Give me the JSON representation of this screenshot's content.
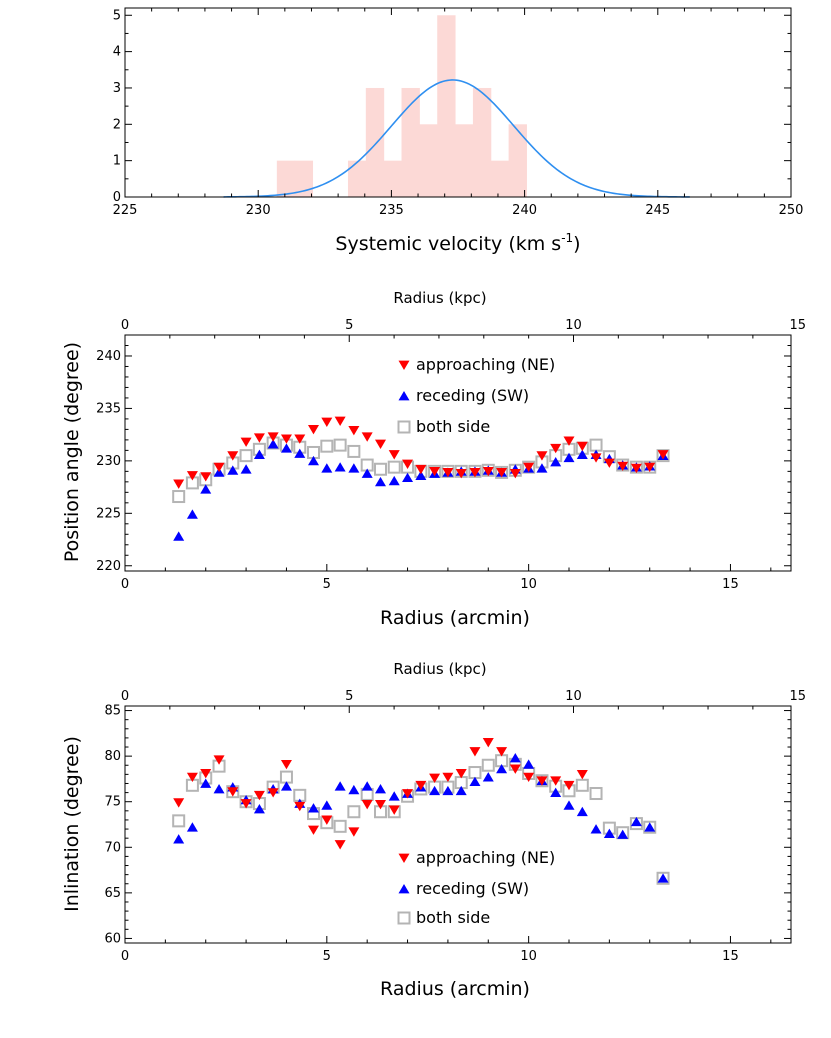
{
  "colors": {
    "approaching": "#ff0000",
    "receding": "#0000ff",
    "both": "#b4b4b4",
    "histogram": "#fcd9d6",
    "gaussian": "#2f8ff0"
  },
  "chart_data": [
    {
      "type": "histogram",
      "id": "panel1",
      "xlabel": "Systemic velocity (km s",
      "xlabel_sup": "-1",
      "xlabel_end": ")",
      "xlim": [
        225,
        250
      ],
      "ylim": [
        0,
        5.2
      ],
      "xticks": [
        225,
        230,
        235,
        240,
        245,
        250
      ],
      "yticks": [
        0,
        1,
        2,
        3,
        4,
        5
      ],
      "bin_width": 0.67,
      "bins": [
        {
          "start": 230.7,
          "count": 1
        },
        {
          "start": 231.37,
          "count": 1
        },
        {
          "start": 233.37,
          "count": 1
        },
        {
          "start": 234.04,
          "count": 3
        },
        {
          "start": 234.71,
          "count": 1
        },
        {
          "start": 235.38,
          "count": 3
        },
        {
          "start": 236.05,
          "count": 2
        },
        {
          "start": 236.72,
          "count": 5
        },
        {
          "start": 237.39,
          "count": 2
        },
        {
          "start": 238.06,
          "count": 3
        },
        {
          "start": 238.73,
          "count": 1
        },
        {
          "start": 239.4,
          "count": 2
        }
      ],
      "gaussian": {
        "amplitude": 3.22,
        "mean": 237.3,
        "sigma": 2.3,
        "x_range": [
          228.7,
          246.2
        ]
      }
    },
    {
      "type": "scatter",
      "id": "panel2",
      "xlabel": "Radius (arcmin)",
      "ylabel": "Position angle (degree)",
      "top_xlabel": "Radius (kpc)",
      "xlim": [
        0,
        16.5
      ],
      "ylim": [
        219.5,
        242
      ],
      "xticks": [
        0,
        5,
        10,
        15
      ],
      "yticks": [
        220,
        225,
        230,
        235,
        240
      ],
      "top_xticks": [
        0,
        5,
        10,
        15
      ],
      "kpc_per_arcmin": 0.9,
      "legend_position": "upper-center",
      "series": [
        {
          "name": "approaching (NE)",
          "marker": "triangle-down",
          "x": [
            1.33,
            1.67,
            2.0,
            2.33,
            2.67,
            3.0,
            3.33,
            3.67,
            4.0,
            4.33,
            4.67,
            5.0,
            5.33,
            5.67,
            6.0,
            6.33,
            6.67,
            7.0,
            7.33,
            7.67,
            8.0,
            8.33,
            8.67,
            9.0,
            9.33,
            9.67,
            10.0,
            10.33,
            10.67,
            11.0,
            11.33,
            11.67,
            12.0,
            12.33,
            12.67,
            13.0,
            13.33
          ],
          "y": [
            227.8,
            228.6,
            228.5,
            229.4,
            230.5,
            231.8,
            232.2,
            232.3,
            232.1,
            232.1,
            233.0,
            233.7,
            233.8,
            232.9,
            232.3,
            231.6,
            230.6,
            229.7,
            229.2,
            229.0,
            228.9,
            228.8,
            228.9,
            229.0,
            228.9,
            228.8,
            229.4,
            230.5,
            231.2,
            231.9,
            231.4,
            230.3,
            229.8,
            229.5,
            229.3,
            229.4,
            230.6
          ]
        },
        {
          "name": "receding (SW)",
          "marker": "triangle-up",
          "x": [
            1.33,
            1.67,
            2.0,
            2.33,
            2.67,
            3.0,
            3.33,
            3.67,
            4.0,
            4.33,
            4.67,
            5.0,
            5.33,
            5.67,
            6.0,
            6.33,
            6.67,
            7.0,
            7.33,
            7.67,
            8.0,
            8.33,
            8.67,
            9.0,
            9.33,
            9.67,
            10.0,
            10.33,
            10.67,
            11.0,
            11.33,
            11.67,
            12.0,
            12.33,
            12.67,
            13.0,
            13.33
          ],
          "y": [
            222.8,
            224.9,
            227.3,
            228.9,
            229.1,
            229.2,
            230.6,
            231.6,
            231.2,
            230.7,
            230.0,
            229.3,
            229.4,
            229.3,
            228.8,
            228.0,
            228.1,
            228.4,
            228.6,
            228.8,
            228.9,
            229.0,
            229.0,
            229.1,
            228.9,
            229.2,
            229.3,
            229.3,
            229.9,
            230.3,
            230.6,
            230.6,
            230.2,
            229.6,
            229.4,
            229.5,
            230.5
          ]
        },
        {
          "name": "both side",
          "marker": "square-open",
          "x": [
            1.33,
            1.67,
            2.0,
            2.33,
            2.67,
            3.0,
            3.33,
            3.67,
            4.0,
            4.33,
            4.67,
            5.0,
            5.33,
            5.67,
            6.0,
            6.33,
            6.67,
            7.0,
            7.33,
            7.67,
            8.0,
            8.33,
            8.67,
            9.0,
            9.33,
            9.67,
            10.0,
            10.33,
            10.67,
            11.0,
            11.33,
            11.67,
            12.0,
            12.33,
            12.67,
            13.0,
            13.33
          ],
          "y": [
            226.6,
            227.9,
            228.2,
            229.2,
            229.8,
            230.5,
            231.1,
            231.7,
            231.5,
            231.3,
            230.8,
            231.4,
            231.5,
            230.9,
            229.6,
            229.2,
            229.4,
            229.4,
            229.0,
            229.0,
            229.0,
            229.0,
            229.0,
            229.1,
            228.9,
            229.1,
            229.4,
            229.9,
            230.5,
            231.1,
            231.2,
            231.5,
            230.4,
            229.6,
            229.4,
            229.4,
            230.5
          ]
        }
      ]
    },
    {
      "type": "scatter",
      "id": "panel3",
      "xlabel": "Radius (arcmin)",
      "ylabel": "Inlination (degree)",
      "top_xlabel": "Radius (kpc)",
      "xlim": [
        0,
        16.5
      ],
      "ylim": [
        59.5,
        85.5
      ],
      "xticks": [
        0,
        5,
        10,
        15
      ],
      "yticks": [
        60,
        65,
        70,
        75,
        80,
        85
      ],
      "top_xticks": [
        0,
        5,
        10,
        15
      ],
      "kpc_per_arcmin": 0.9,
      "legend_position": "lower-center",
      "series": [
        {
          "name": "approaching (NE)",
          "marker": "triangle-down",
          "x": [
            1.33,
            1.67,
            2.0,
            2.33,
            2.67,
            3.0,
            3.33,
            3.67,
            4.0,
            4.33,
            4.67,
            5.0,
            5.33,
            5.67,
            6.0,
            6.33,
            6.67,
            7.0,
            7.33,
            7.67,
            8.0,
            8.33,
            8.67,
            9.0,
            9.33,
            9.67,
            10.0,
            10.33,
            10.67,
            11.0,
            11.33
          ],
          "y": [
            74.9,
            77.7,
            78.1,
            79.6,
            76.1,
            74.8,
            75.7,
            76.0,
            79.1,
            74.5,
            71.9,
            73.0,
            70.3,
            71.7,
            74.7,
            74.7,
            74.1,
            75.9,
            76.8,
            77.6,
            77.7,
            78.1,
            80.5,
            81.5,
            80.5,
            78.6,
            77.7,
            77.3,
            77.3,
            76.8,
            78.0
          ]
        },
        {
          "name": "receding (SW)",
          "marker": "triangle-up",
          "x": [
            1.33,
            1.67,
            2.0,
            2.33,
            2.67,
            3.0,
            3.33,
            3.67,
            4.0,
            4.33,
            4.67,
            5.0,
            5.33,
            5.67,
            6.0,
            6.33,
            6.67,
            7.0,
            7.33,
            7.67,
            8.0,
            8.33,
            8.67,
            9.0,
            9.33,
            9.67,
            10.0,
            10.33,
            10.67,
            11.0,
            11.33,
            11.67,
            12.0,
            12.33,
            12.67,
            13.0,
            13.33
          ],
          "y": [
            70.9,
            72.2,
            77.0,
            76.4,
            76.6,
            75.2,
            74.2,
            76.4,
            76.7,
            74.8,
            74.3,
            74.6,
            76.7,
            76.3,
            76.7,
            76.4,
            75.6,
            75.9,
            76.6,
            76.2,
            76.2,
            76.2,
            77.2,
            77.7,
            78.6,
            79.8,
            79.1,
            77.3,
            76.0,
            74.6,
            73.9,
            72.0,
            71.5,
            71.4,
            72.8,
            72.2,
            66.6
          ]
        },
        {
          "name": "both side",
          "marker": "square-open",
          "x": [
            1.33,
            1.67,
            2.0,
            2.33,
            2.67,
            3.0,
            3.33,
            3.67,
            4.0,
            4.33,
            4.67,
            5.0,
            5.33,
            5.67,
            6.0,
            6.33,
            6.67,
            7.0,
            7.33,
            7.67,
            8.0,
            8.33,
            8.67,
            9.0,
            9.33,
            9.67,
            10.0,
            10.33,
            10.67,
            11.0,
            11.33,
            11.67,
            12.0,
            12.33,
            12.67,
            13.0,
            13.33
          ],
          "y": [
            72.9,
            76.8,
            77.6,
            78.9,
            76.1,
            75.0,
            74.8,
            76.6,
            77.7,
            75.7,
            73.7,
            72.7,
            72.3,
            73.9,
            75.8,
            73.9,
            73.9,
            75.6,
            76.4,
            76.6,
            76.6,
            77.1,
            78.2,
            79.0,
            79.5,
            79.1,
            78.1,
            77.3,
            76.7,
            76.2,
            76.8,
            75.9,
            72.1,
            71.6,
            72.6,
            72.2,
            66.6
          ]
        }
      ]
    }
  ]
}
